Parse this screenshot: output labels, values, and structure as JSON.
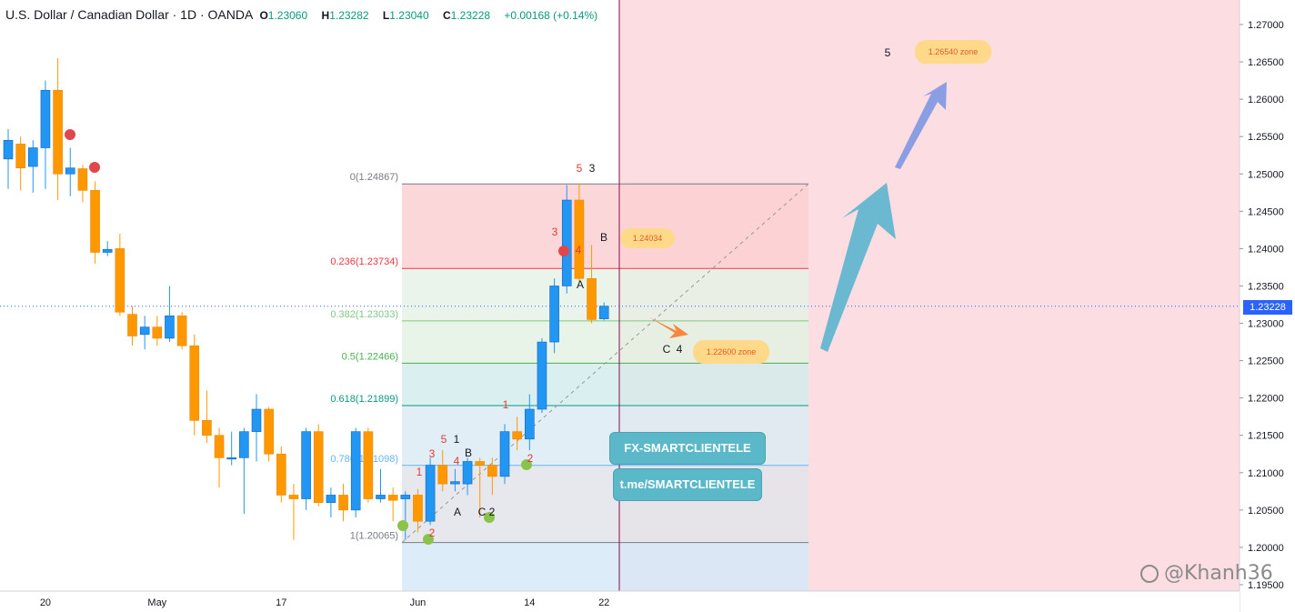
{
  "header": {
    "title": "U.S. Dollar / Canadian Dollar · 1D · OANDA",
    "open_label": "O",
    "open": "1.23060",
    "high_label": "H",
    "high": "1.23282",
    "low_label": "L",
    "low": "1.23040",
    "close_label": "C",
    "close": "1.23228",
    "change": "+0.00168 (+0.14%)"
  },
  "current_price": "1.23228",
  "watermark": "@Khanh36",
  "buttons": {
    "channel": "FX-SMARTCLIENTELE",
    "telegram": "t.me/SMARTCLIENTELE"
  },
  "callouts": {
    "target_1": "1.24034",
    "target_2": "1.22600 zone",
    "target_3": "1.26540 zone"
  },
  "chart_data": {
    "type": "candlestick",
    "symbol": "USDCAD",
    "timeframe": "1D",
    "ylim": [
      1.1955,
      1.2715
    ],
    "y_ticks": [
      "1.27000",
      "1.26500",
      "1.26000",
      "1.25500",
      "1.25000",
      "1.24500",
      "1.24000",
      "1.23500",
      "1.23000",
      "1.22500",
      "1.22000",
      "1.21500",
      "1.21000",
      "1.20500",
      "1.20000",
      "1.19500"
    ],
    "x_ticks": [
      "20",
      "May",
      "17",
      "Jun",
      "14",
      "22"
    ],
    "candles": [
      {
        "o": 1.252,
        "h": 1.256,
        "l": 1.248,
        "c": 1.2545
      },
      {
        "o": 1.254,
        "h": 1.255,
        "l": 1.2478,
        "c": 1.2508
      },
      {
        "o": 1.251,
        "h": 1.2545,
        "l": 1.2475,
        "c": 1.2535
      },
      {
        "o": 1.2535,
        "h": 1.2625,
        "l": 1.248,
        "c": 1.2612
      },
      {
        "o": 1.2612,
        "h": 1.2655,
        "l": 1.2465,
        "c": 1.25
      },
      {
        "o": 1.25,
        "h": 1.2535,
        "l": 1.247,
        "c": 1.2508
      },
      {
        "o": 1.2507,
        "h": 1.2512,
        "l": 1.2462,
        "c": 1.2478
      },
      {
        "o": 1.2478,
        "h": 1.249,
        "l": 1.238,
        "c": 1.2395
      },
      {
        "o": 1.2395,
        "h": 1.241,
        "l": 1.239,
        "c": 1.2399
      },
      {
        "o": 1.24,
        "h": 1.242,
        "l": 1.231,
        "c": 1.2315
      },
      {
        "o": 1.2312,
        "h": 1.2323,
        "l": 1.227,
        "c": 1.2283
      },
      {
        "o": 1.2285,
        "h": 1.231,
        "l": 1.2265,
        "c": 1.2295
      },
      {
        "o": 1.2295,
        "h": 1.231,
        "l": 1.227,
        "c": 1.228
      },
      {
        "o": 1.228,
        "h": 1.235,
        "l": 1.2275,
        "c": 1.231
      },
      {
        "o": 1.231,
        "h": 1.2315,
        "l": 1.2265,
        "c": 1.227
      },
      {
        "o": 1.227,
        "h": 1.2285,
        "l": 1.215,
        "c": 1.217
      },
      {
        "o": 1.217,
        "h": 1.221,
        "l": 1.214,
        "c": 1.215
      },
      {
        "o": 1.215,
        "h": 1.216,
        "l": 1.208,
        "c": 1.212
      },
      {
        "o": 1.212,
        "h": 1.2155,
        "l": 1.211,
        "c": 1.212
      },
      {
        "o": 1.212,
        "h": 1.216,
        "l": 1.2045,
        "c": 1.2155
      },
      {
        "o": 1.2155,
        "h": 1.2205,
        "l": 1.2115,
        "c": 1.2185
      },
      {
        "o": 1.2185,
        "h": 1.2188,
        "l": 1.2115,
        "c": 1.2125
      },
      {
        "o": 1.2125,
        "h": 1.2135,
        "l": 1.206,
        "c": 1.207
      },
      {
        "o": 1.207,
        "h": 1.2085,
        "l": 1.201,
        "c": 1.2065
      },
      {
        "o": 1.2065,
        "h": 1.216,
        "l": 1.205,
        "c": 1.2155
      },
      {
        "o": 1.2155,
        "h": 1.2165,
        "l": 1.2055,
        "c": 1.206
      },
      {
        "o": 1.206,
        "h": 1.208,
        "l": 1.204,
        "c": 1.207
      },
      {
        "o": 1.207,
        "h": 1.2085,
        "l": 1.2035,
        "c": 1.205
      },
      {
        "o": 1.205,
        "h": 1.216,
        "l": 1.204,
        "c": 1.2155
      },
      {
        "o": 1.2155,
        "h": 1.216,
        "l": 1.206,
        "c": 1.2065
      },
      {
        "o": 1.2065,
        "h": 1.2105,
        "l": 1.206,
        "c": 1.207
      },
      {
        "o": 1.207,
        "h": 1.208,
        "l": 1.2035,
        "c": 1.2063
      },
      {
        "o": 1.2065,
        "h": 1.2075,
        "l": 1.201,
        "c": 1.207
      },
      {
        "o": 1.207,
        "h": 1.2078,
        "l": 1.202,
        "c": 1.2035
      },
      {
        "o": 1.2035,
        "h": 1.212,
        "l": 1.203,
        "c": 1.211
      },
      {
        "o": 1.211,
        "h": 1.213,
        "l": 1.2075,
        "c": 1.2085
      },
      {
        "o": 1.2085,
        "h": 1.2105,
        "l": 1.2075,
        "c": 1.2088
      },
      {
        "o": 1.2085,
        "h": 1.212,
        "l": 1.207,
        "c": 1.2115
      },
      {
        "o": 1.2115,
        "h": 1.212,
        "l": 1.204,
        "c": 1.211
      },
      {
        "o": 1.211,
        "h": 1.212,
        "l": 1.207,
        "c": 1.2095
      },
      {
        "o": 1.2095,
        "h": 1.2165,
        "l": 1.2085,
        "c": 1.2155
      },
      {
        "o": 1.2155,
        "h": 1.2175,
        "l": 1.213,
        "c": 1.2145
      },
      {
        "o": 1.2145,
        "h": 1.2205,
        "l": 1.213,
        "c": 1.2185
      },
      {
        "o": 1.2185,
        "h": 1.228,
        "l": 1.218,
        "c": 1.2275
      },
      {
        "o": 1.2275,
        "h": 1.236,
        "l": 1.226,
        "c": 1.235
      },
      {
        "o": 1.235,
        "h": 1.2485,
        "l": 1.234,
        "c": 1.2465
      },
      {
        "o": 1.2465,
        "h": 1.2487,
        "l": 1.2355,
        "c": 1.236
      },
      {
        "o": 1.236,
        "h": 1.2405,
        "l": 1.23,
        "c": 1.2305
      },
      {
        "o": 1.2306,
        "h": 1.2328,
        "l": 1.2304,
        "c": 1.2323
      }
    ],
    "fibonacci": [
      {
        "label": "0(1.24867)",
        "value": 1.24867,
        "color": "#787b86"
      },
      {
        "label": "0.236(1.23734)",
        "value": 1.23734,
        "color": "#f23645"
      },
      {
        "label": "0.382(1.23033)",
        "value": 1.23033,
        "color": "#81c784"
      },
      {
        "label": "0.5(1.22466)",
        "value": 1.22466,
        "color": "#4caf50"
      },
      {
        "label": "0.618(1.21899)",
        "value": 1.21899,
        "color": "#089981"
      },
      {
        "label": "0.786(1.21098)",
        "value": 1.21098,
        "color": "#64b5f6"
      },
      {
        "label": "1(1.20065)",
        "value": 1.20065,
        "color": "#787b86"
      }
    ],
    "wave_labels": [
      {
        "t": "1",
        "color": "#e53935"
      },
      {
        "t": "2",
        "color": "#e53935"
      },
      {
        "t": "3",
        "color": "#e53935"
      },
      {
        "t": "4",
        "color": "#e53935"
      },
      {
        "t": "5",
        "color": "#e53935"
      },
      {
        "t": "1",
        "color": "#131722"
      },
      {
        "t": "A",
        "color": "#131722"
      },
      {
        "t": "B",
        "color": "#131722"
      },
      {
        "t": "C",
        "color": "#131722"
      },
      {
        "t": "2",
        "color": "#131722"
      },
      {
        "t": "1",
        "color": "#e53935"
      },
      {
        "t": "2",
        "color": "#e53935"
      },
      {
        "t": "3",
        "color": "#e53935"
      },
      {
        "t": "4",
        "color": "#e53935"
      },
      {
        "t": "5",
        "color": "#e53935"
      },
      {
        "t": "3",
        "color": "#131722"
      },
      {
        "t": "A",
        "color": "#131722"
      },
      {
        "t": "B",
        "color": "#131722"
      },
      {
        "t": "C",
        "color": "#131722"
      },
      {
        "t": "4",
        "color": "#131722"
      },
      {
        "t": "5",
        "color": "#131722"
      }
    ],
    "colors": {
      "up": "#2196f3",
      "down": "#ff9800",
      "projection": "#fbdde2",
      "grid": "#f0f3fa"
    }
  }
}
